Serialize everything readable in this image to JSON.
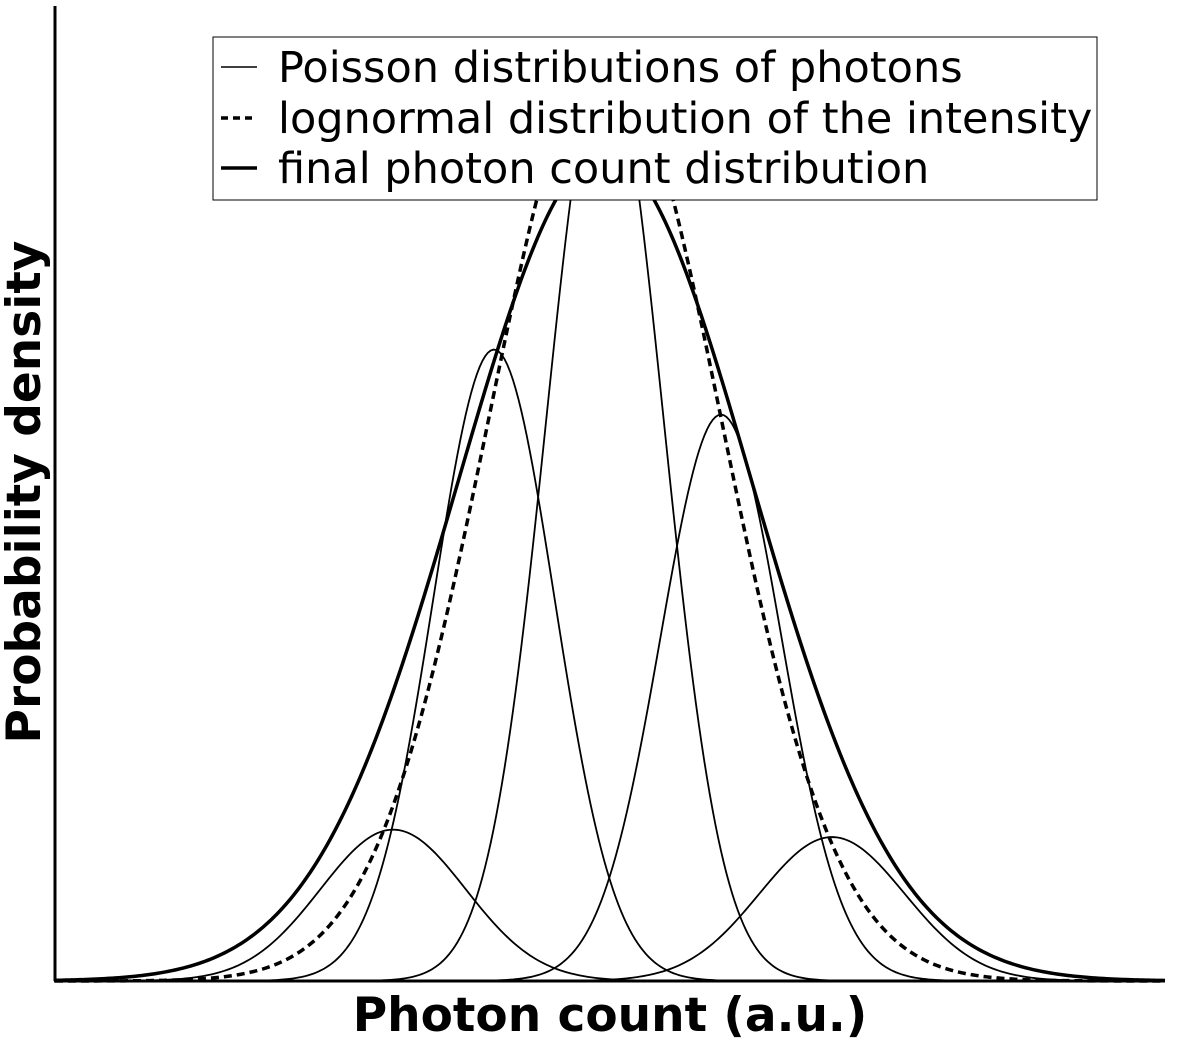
{
  "chart_data": {
    "type": "line",
    "title": "",
    "xlabel": "Photon count (a.u.)",
    "ylabel": "Probability density",
    "xlim": [
      0,
      11
    ],
    "ylim": [
      0,
      1.05
    ],
    "grid": false,
    "legend_position": "top-right",
    "legend": [
      {
        "label": "Poisson distributions of photons",
        "style": "thin-solid"
      },
      {
        "label": "lognormal distribution of the intensity",
        "style": "dashed"
      },
      {
        "label": "final photon count distribution",
        "style": "thick-solid"
      }
    ],
    "series": [
      {
        "style": "thin-solid",
        "peak_x": 3.35,
        "peak_y": 0.163,
        "sigma": 0.72
      },
      {
        "style": "thin-solid",
        "peak_x": 4.35,
        "peak_y": 0.68,
        "sigma": 0.6
      },
      {
        "style": "thin-solid",
        "peak_x": 5.45,
        "peak_y": 1.0,
        "sigma": 0.58
      },
      {
        "style": "thin-solid",
        "peak_x": 6.6,
        "peak_y": 0.61,
        "sigma": 0.6
      },
      {
        "style": "thin-solid",
        "peak_x": 7.7,
        "peak_y": 0.155,
        "sigma": 0.72
      },
      {
        "style": "dashed",
        "peak_x": 5.45,
        "peak_y": 1.0,
        "sigma": 1.15
      },
      {
        "style": "thick-solid",
        "peak_x": 5.45,
        "peak_y": 0.89,
        "sigma": 1.45
      }
    ],
    "colors": {
      "line": "#000000",
      "background": "#ffffff"
    }
  }
}
